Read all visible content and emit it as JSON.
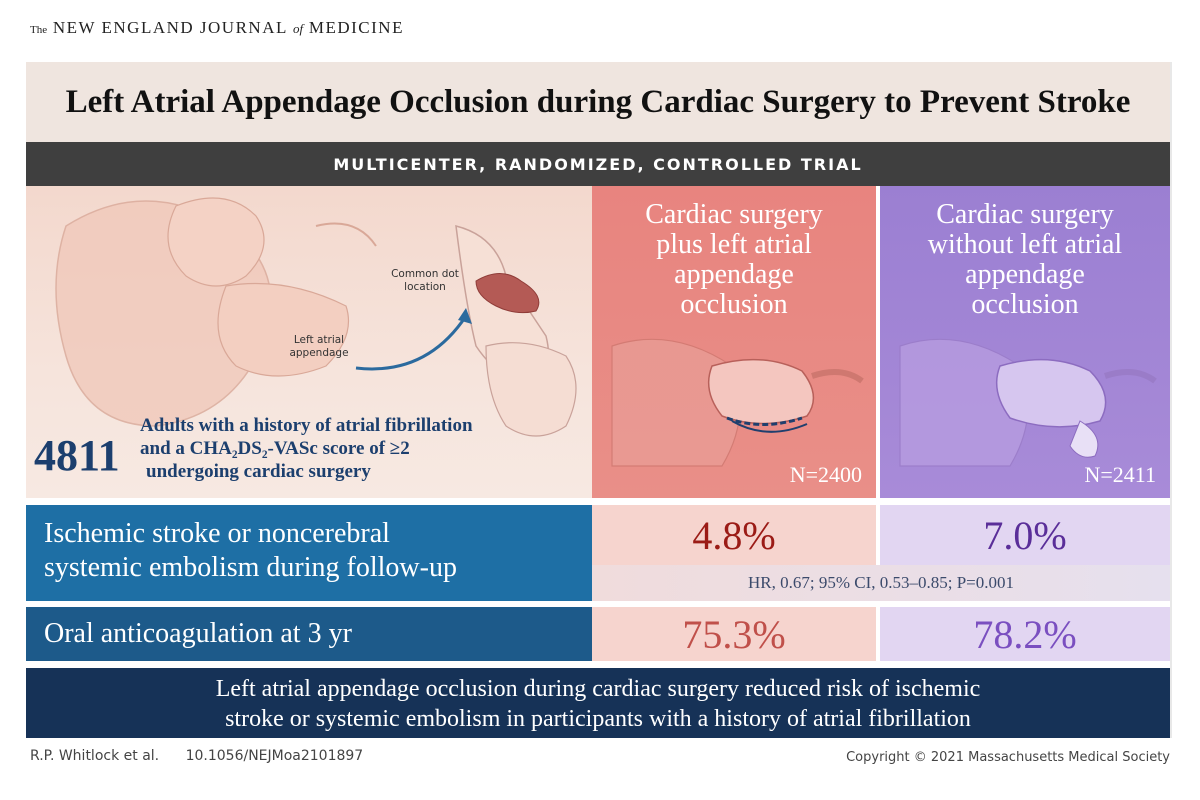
{
  "journal": {
    "the": "The",
    "name_part1": "NEW ENGLAND JOURNAL",
    "of": "of",
    "name_part2": "MEDICINE"
  },
  "title": "Left Atrial Appendage Occlusion during Cardiac Surgery to Prevent Stroke",
  "trial_type": "MULTICENTER, RANDOMIZED, CONTROLLED TRIAL",
  "population": {
    "count": "4811",
    "desc_line1": "Adults with a history of atrial fibrillation",
    "desc_line2": "and a CHA₂DS₂-VASc score of ≥2",
    "desc_line3": "undergoing cardiac surgery",
    "illustration_label_dot": "Common dot location",
    "illustration_label_appendage": "Left atrial appendage"
  },
  "arms": {
    "occlusion": {
      "title_lines": [
        "Cardiac surgery",
        "plus left atrial",
        "appendage",
        "occlusion"
      ],
      "n": "N=2400",
      "color": "#e8847f"
    },
    "no_occlusion": {
      "title_lines": [
        "Cardiac surgery",
        "without left atrial",
        "appendage",
        "occlusion"
      ],
      "n": "N=2411",
      "color": "#9b7fd2"
    }
  },
  "outcomes": {
    "stroke": {
      "label_line1": "Ischemic stroke or noncerebral",
      "label_line2": "systemic embolism during follow-up",
      "occlusion_value": "4.8%",
      "no_occlusion_value": "7.0%",
      "stats": "HR, 0.67; 95% CI, 0.53–0.85; P=0.001"
    },
    "anticoag": {
      "label": "Oral anticoagulation at 3 yr",
      "occlusion_value": "75.3%",
      "no_occlusion_value": "78.2%"
    }
  },
  "conclusion": {
    "line1": "Left atrial appendage occlusion during cardiac surgery reduced risk of ischemic",
    "line2": "stroke or systemic embolism in participants with a history of atrial fibrillation"
  },
  "footer": {
    "authors": "R.P. Whitlock et al.",
    "doi": "10.1056/NEJMoa2101897",
    "copyright": "Copyright © 2021 Massachusetts Medical Society"
  }
}
